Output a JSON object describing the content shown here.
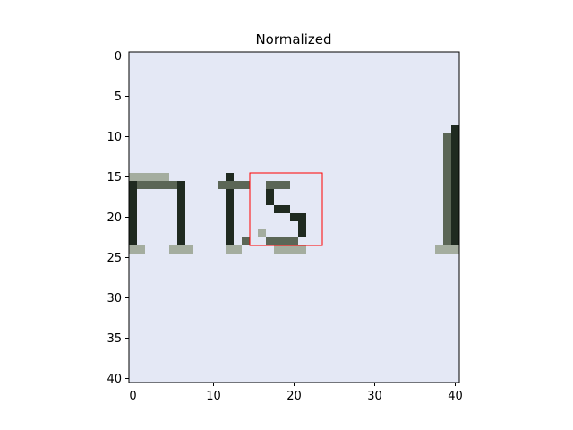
{
  "figure": {
    "title": "Normalized",
    "x_ticks": [
      "0",
      "10",
      "20",
      "30",
      "40"
    ],
    "y_ticks": [
      "0",
      "5",
      "10",
      "15",
      "20",
      "25",
      "30",
      "35",
      "40"
    ]
  },
  "image": {
    "width_cells": 41,
    "height_cells": 41,
    "content": "zoomed text crop showing letters n, t, s and a vertical stroke on a pale bluish background",
    "colors": {
      "background": "#e4e8f5",
      "ink": "#1f2a20",
      "ink_mid": "#5b6656",
      "ink_soft": "#a4ad9f",
      "box": "#ff0000"
    }
  },
  "highlight_box": {
    "x_start": 15,
    "x_end": 24,
    "y_start": 15,
    "y_end": 24
  }
}
